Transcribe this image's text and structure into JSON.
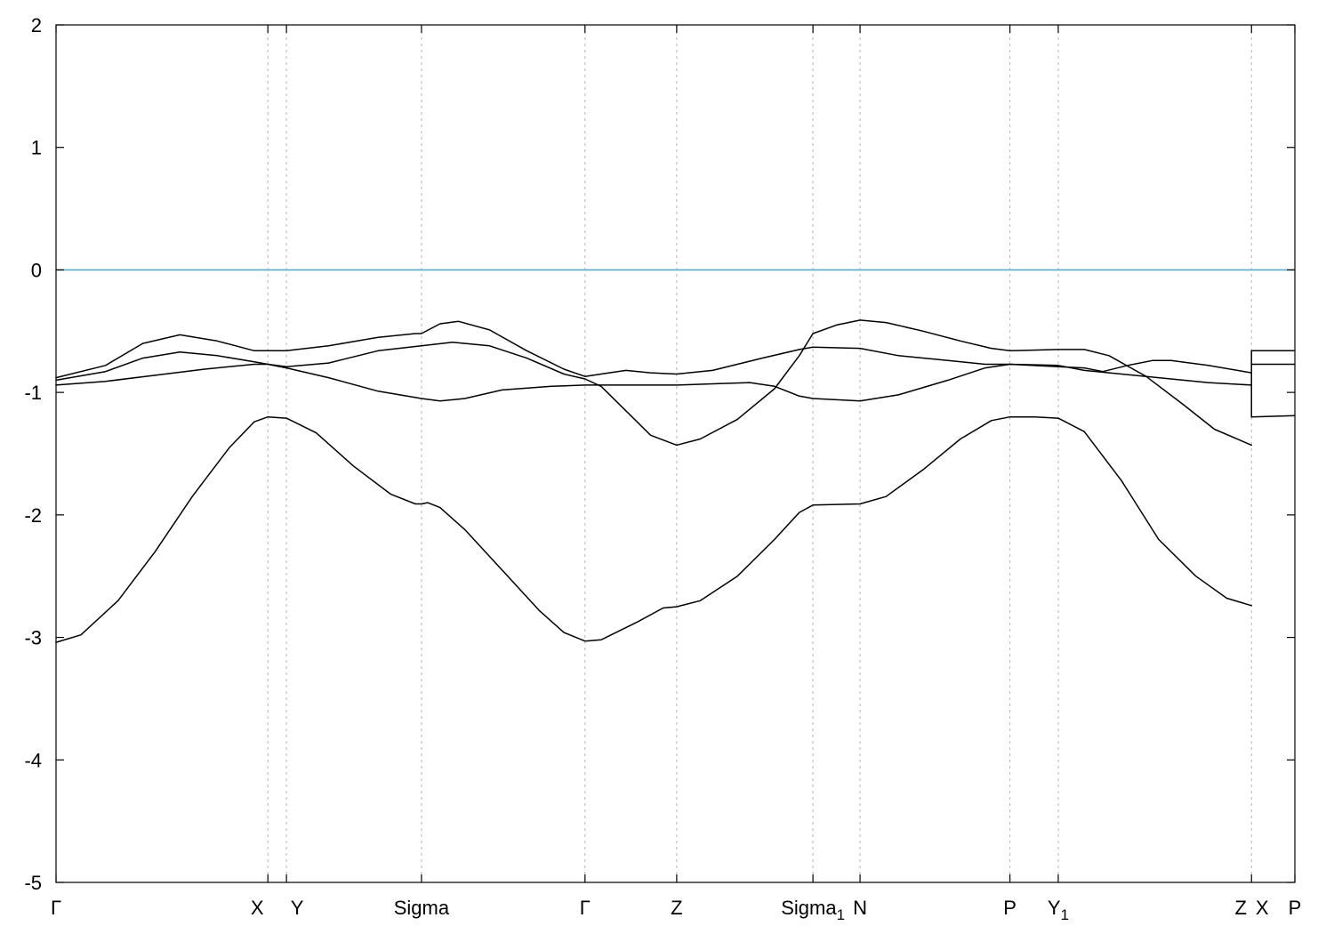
{
  "chart_data": {
    "type": "line",
    "title": "",
    "xlabel": "",
    "ylabel": "",
    "xlim": [
      0,
      1
    ],
    "ylim": [
      -5,
      2
    ],
    "y_ticks": [
      2,
      1,
      0,
      -1,
      -2,
      -3,
      -4,
      -5
    ],
    "y_tick_labels": [
      "2",
      "1",
      "0",
      "-1",
      "-2",
      "-3",
      "-4",
      "-5"
    ],
    "grid": "vertical dashed lines at high-symmetry points",
    "line_color": "#000000",
    "reference_line": {
      "y": 0,
      "color": "#5aaac8"
    },
    "high_symmetry_points": [
      {
        "label": "Γ",
        "sub": "",
        "x": 0.0
      },
      {
        "label": "X",
        "sub": "",
        "x": 0.171
      },
      {
        "label": "Y",
        "sub": "",
        "x": 0.186
      },
      {
        "label": "Sigma",
        "sub": "",
        "x": 0.295
      },
      {
        "label": "Γ",
        "sub": "",
        "x": 0.427
      },
      {
        "label": "Z",
        "sub": "",
        "x": 0.501
      },
      {
        "label": "Sigma",
        "sub": "1",
        "x": 0.611
      },
      {
        "label": "N",
        "sub": "",
        "x": 0.649
      },
      {
        "label": "P",
        "sub": "",
        "x": 0.77
      },
      {
        "label": "Y",
        "sub": "1",
        "x": 0.809
      },
      {
        "label": "Z",
        "sub": "",
        "x": 0.965
      },
      {
        "label": "X",
        "sub": "",
        "x": 0.965
      },
      {
        "label": "P",
        "sub": "",
        "x": 1.0
      }
    ],
    "series": [
      {
        "segments": [
          [
            [
              0,
              -3.04
            ],
            [
              0.02,
              -2.98
            ],
            [
              0.05,
              -2.7
            ],
            [
              0.08,
              -2.3
            ],
            [
              0.11,
              -1.85
            ],
            [
              0.14,
              -1.45
            ],
            [
              0.16,
              -1.24
            ],
            [
              0.171,
              -1.2
            ],
            [
              0.186,
              -1.21
            ],
            [
              0.21,
              -1.33
            ],
            [
              0.24,
              -1.6
            ],
            [
              0.27,
              -1.83
            ],
            [
              0.29,
              -1.91
            ],
            [
              0.295,
              -1.91
            ],
            [
              0.3,
              -1.9
            ],
            [
              0.31,
              -1.94
            ],
            [
              0.33,
              -2.12
            ],
            [
              0.36,
              -2.45
            ],
            [
              0.39,
              -2.78
            ],
            [
              0.41,
              -2.96
            ],
            [
              0.427,
              -3.03
            ],
            [
              0.44,
              -3.02
            ],
            [
              0.47,
              -2.87
            ],
            [
              0.49,
              -2.76
            ],
            [
              0.501,
              -2.75
            ],
            [
              0.52,
              -2.7
            ],
            [
              0.55,
              -2.5
            ],
            [
              0.58,
              -2.2
            ],
            [
              0.6,
              -1.98
            ],
            [
              0.611,
              -1.92
            ],
            [
              0.649,
              -1.91
            ],
            [
              0.67,
              -1.85
            ],
            [
              0.7,
              -1.63
            ],
            [
              0.73,
              -1.38
            ],
            [
              0.755,
              -1.23
            ],
            [
              0.77,
              -1.2
            ],
            [
              0.79,
              -1.2
            ],
            [
              0.809,
              -1.21
            ],
            [
              0.83,
              -1.32
            ],
            [
              0.86,
              -1.72
            ],
            [
              0.89,
              -2.2
            ],
            [
              0.92,
              -2.5
            ],
            [
              0.945,
              -2.68
            ],
            [
              0.965,
              -2.74
            ]
          ],
          [
            [
              0.965,
              -1.2
            ],
            [
              1.0,
              -1.19
            ]
          ]
        ]
      },
      {
        "segments": [
          [
            [
              0,
              -0.9
            ],
            [
              0.04,
              -0.83
            ],
            [
              0.07,
              -0.72
            ],
            [
              0.1,
              -0.67
            ],
            [
              0.13,
              -0.7
            ],
            [
              0.16,
              -0.75
            ],
            [
              0.171,
              -0.77
            ],
            [
              0.186,
              -0.8
            ],
            [
              0.22,
              -0.88
            ],
            [
              0.26,
              -0.99
            ],
            [
              0.295,
              -1.05
            ],
            [
              0.31,
              -1.07
            ],
            [
              0.33,
              -1.05
            ],
            [
              0.36,
              -0.98
            ],
            [
              0.4,
              -0.95
            ],
            [
              0.427,
              -0.94
            ],
            [
              0.46,
              -0.94
            ],
            [
              0.501,
              -0.94
            ],
            [
              0.53,
              -0.93
            ],
            [
              0.56,
              -0.92
            ],
            [
              0.58,
              -0.95
            ],
            [
              0.6,
              -1.03
            ],
            [
              0.611,
              -1.05
            ],
            [
              0.649,
              -1.07
            ],
            [
              0.68,
              -1.02
            ],
            [
              0.72,
              -0.9
            ],
            [
              0.75,
              -0.8
            ],
            [
              0.77,
              -0.77
            ],
            [
              0.809,
              -0.78
            ],
            [
              0.83,
              -0.82
            ],
            [
              0.86,
              -0.85
            ],
            [
              0.9,
              -0.89
            ],
            [
              0.93,
              -0.92
            ],
            [
              0.965,
              -0.94
            ]
          ],
          [
            [
              0.965,
              -0.77
            ],
            [
              1.0,
              -0.77
            ]
          ]
        ]
      },
      {
        "segments": [
          [
            [
              0,
              -0.88
            ],
            [
              0.04,
              -0.78
            ],
            [
              0.07,
              -0.6
            ],
            [
              0.1,
              -0.53
            ],
            [
              0.13,
              -0.58
            ],
            [
              0.16,
              -0.66
            ],
            [
              0.171,
              -0.66
            ],
            [
              0.186,
              -0.66
            ],
            [
              0.22,
              -0.62
            ],
            [
              0.26,
              -0.55
            ],
            [
              0.29,
              -0.52
            ],
            [
              0.295,
              -0.52
            ],
            [
              0.31,
              -0.44
            ],
            [
              0.325,
              -0.42
            ],
            [
              0.35,
              -0.49
            ],
            [
              0.38,
              -0.66
            ],
            [
              0.41,
              -0.81
            ],
            [
              0.427,
              -0.87
            ],
            [
              0.44,
              -0.85
            ],
            [
              0.46,
              -0.82
            ],
            [
              0.48,
              -0.84
            ],
            [
              0.501,
              -0.85
            ],
            [
              0.53,
              -0.82
            ],
            [
              0.57,
              -0.72
            ],
            [
              0.6,
              -0.65
            ],
            [
              0.611,
              -0.63
            ],
            [
              0.649,
              -0.64
            ],
            [
              0.68,
              -0.7
            ],
            [
              0.72,
              -0.74
            ],
            [
              0.75,
              -0.77
            ],
            [
              0.77,
              -0.77
            ],
            [
              0.809,
              -0.79
            ],
            [
              0.83,
              -0.8
            ],
            [
              0.845,
              -0.83
            ],
            [
              0.865,
              -0.78
            ],
            [
              0.885,
              -0.74
            ],
            [
              0.9,
              -0.74
            ],
            [
              0.93,
              -0.78
            ],
            [
              0.965,
              -0.84
            ]
          ],
          [
            [
              0.965,
              -0.66
            ],
            [
              1.0,
              -0.66
            ]
          ]
        ]
      },
      {
        "segments": [
          [
            [
              0,
              -0.94
            ],
            [
              0.04,
              -0.91
            ],
            [
              0.08,
              -0.86
            ],
            [
              0.12,
              -0.81
            ],
            [
              0.16,
              -0.77
            ],
            [
              0.171,
              -0.77
            ],
            [
              0.186,
              -0.79
            ],
            [
              0.22,
              -0.76
            ],
            [
              0.26,
              -0.66
            ],
            [
              0.295,
              -0.62
            ],
            [
              0.32,
              -0.59
            ],
            [
              0.35,
              -0.62
            ],
            [
              0.38,
              -0.72
            ],
            [
              0.41,
              -0.85
            ],
            [
              0.427,
              -0.89
            ],
            [
              0.44,
              -0.95
            ],
            [
              0.46,
              -1.15
            ],
            [
              0.48,
              -1.35
            ],
            [
              0.501,
              -1.43
            ],
            [
              0.52,
              -1.38
            ],
            [
              0.55,
              -1.22
            ],
            [
              0.58,
              -0.97
            ],
            [
              0.6,
              -0.7
            ],
            [
              0.611,
              -0.52
            ],
            [
              0.63,
              -0.45
            ],
            [
              0.649,
              -0.41
            ],
            [
              0.67,
              -0.43
            ],
            [
              0.7,
              -0.5
            ],
            [
              0.73,
              -0.58
            ],
            [
              0.755,
              -0.64
            ],
            [
              0.77,
              -0.66
            ],
            [
              0.809,
              -0.65
            ],
            [
              0.83,
              -0.65
            ],
            [
              0.85,
              -0.7
            ],
            [
              0.88,
              -0.87
            ],
            [
              0.91,
              -1.1
            ],
            [
              0.935,
              -1.3
            ],
            [
              0.965,
              -1.43
            ]
          ],
          [
            [
              0.965,
              -1.2
            ],
            [
              0.965,
              -0.66
            ]
          ]
        ]
      }
    ]
  }
}
